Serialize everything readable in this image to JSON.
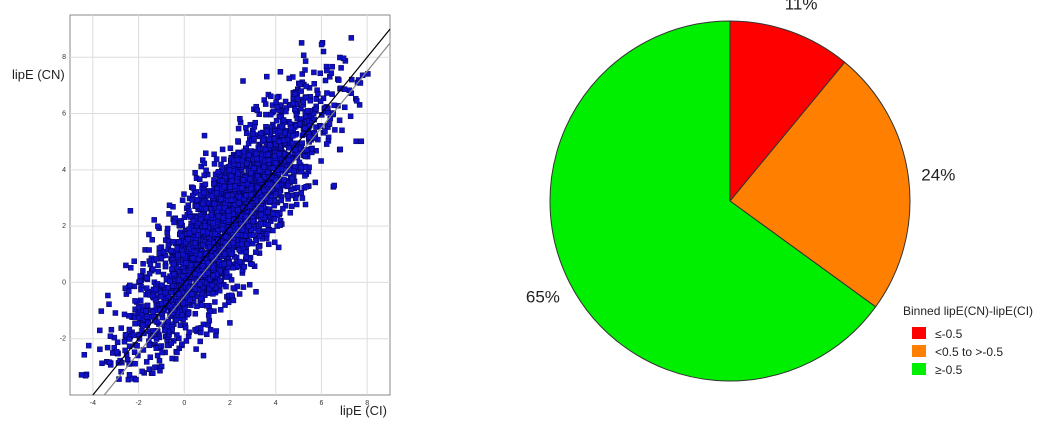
{
  "chart_data": [
    {
      "type": "scatter",
      "xlabel": "lipE (CI)",
      "ylabel": "lipE (CN)",
      "xlim": [
        -5,
        9
      ],
      "ylim": [
        -4,
        9.5
      ],
      "x_ticks": [
        "-4",
        "-2",
        "0",
        "2",
        "4",
        "6",
        "8"
      ],
      "y_ticks": [
        "-2",
        "0",
        "2",
        "4",
        "6",
        "8"
      ],
      "grid": true,
      "marker_color": "#1010c8",
      "marker_edge_color": "#000050",
      "reference_lines": [
        {
          "name": "identity",
          "slope": 1,
          "intercept": 0,
          "color": "#000000"
        },
        {
          "name": "identity-offset",
          "slope": 1,
          "intercept": -0.5,
          "color": "#888888"
        }
      ],
      "n_points_shown": 2600,
      "series": [
        {
          "distribution": "bivariate-normal",
          "x_mean": 1.8,
          "x_sd": 2.1,
          "y_mean": 2.1,
          "y_sd": 2.3,
          "correlation": 0.85,
          "x_range": [
            -4.5,
            8.5
          ],
          "y_range": [
            -3.5,
            9.2
          ]
        }
      ]
    },
    {
      "type": "pie",
      "labels": [
        "≤-0.5",
        "<0.5 to >-0.5",
        "≥-0.5"
      ],
      "values": [
        11,
        24,
        65
      ],
      "value_labels": [
        "11%",
        "24%",
        "65%"
      ],
      "colors": [
        "#ff0000",
        "#ff8000",
        "#00ee00"
      ],
      "legend_title": "Binned lipE(CN)-lipE(CI)",
      "legend_position": "bottom-right"
    }
  ]
}
